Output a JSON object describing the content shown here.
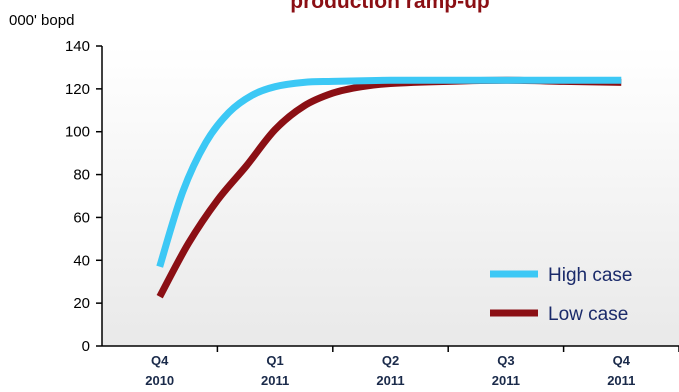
{
  "chart_data": {
    "type": "line",
    "title": "production ramp-up",
    "ylabel": "000' bopd",
    "xlabel": "",
    "ylim": [
      0,
      140
    ],
    "yticks": [
      0,
      20,
      40,
      60,
      80,
      100,
      120,
      140
    ],
    "categories": [
      {
        "quarter": "Q4",
        "year": "2010"
      },
      {
        "quarter": "Q1",
        "year": "2011"
      },
      {
        "quarter": "Q2",
        "year": "2011"
      },
      {
        "quarter": "Q3",
        "year": "2011"
      },
      {
        "quarter": "Q4",
        "year": "2011"
      }
    ],
    "grid": false,
    "legend_position": "bottom-right",
    "series": [
      {
        "name": "High case",
        "color": "#3cc8f5",
        "x": [
          0,
          0.2,
          0.4,
          0.6,
          0.8,
          1.0,
          1.25,
          1.5,
          2.0,
          2.5,
          3.0,
          3.5,
          4.0
        ],
        "values": [
          37,
          72,
          95,
          109,
          117,
          121,
          123,
          123.5,
          124,
          124,
          124,
          124,
          124
        ]
      },
      {
        "name": "Low case",
        "color": "#8b0f14",
        "x": [
          0,
          0.25,
          0.5,
          0.75,
          1.0,
          1.25,
          1.5,
          1.75,
          2.0,
          2.5,
          3.0,
          3.5,
          4.0
        ],
        "values": [
          23,
          48,
          68,
          84,
          101,
          112,
          118,
          121,
          122.5,
          123.5,
          124,
          123.5,
          123
        ]
      }
    ]
  }
}
